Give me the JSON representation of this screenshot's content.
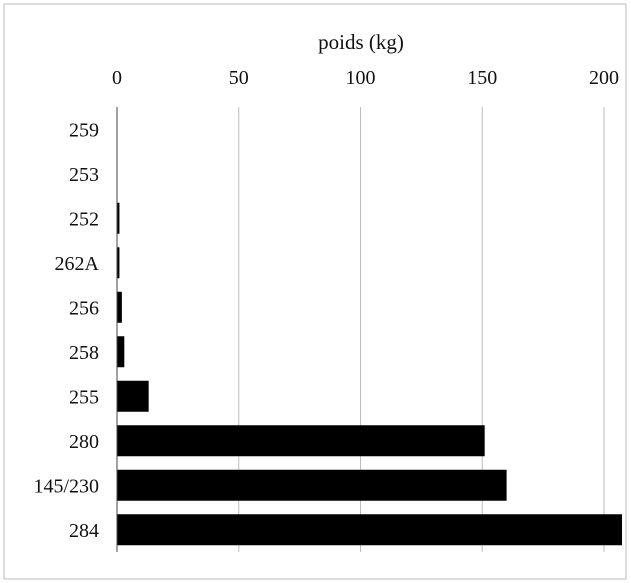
{
  "chart_data": {
    "type": "bar",
    "orientation": "horizontal",
    "xlabel": "poids (kg)",
    "x_axis_position": "top",
    "xlim": [
      0,
      205
    ],
    "xticks": [
      0,
      50,
      100,
      150,
      200
    ],
    "xtick_labels": [
      "0",
      "50",
      "100",
      "150",
      "200"
    ],
    "grid": "vertical",
    "categories": [
      "259",
      "253",
      "252",
      "262A",
      "256",
      "258",
      "255",
      "280",
      "145/230",
      "284"
    ],
    "values": [
      0,
      0,
      1,
      1,
      2,
      3,
      13,
      151,
      160,
      208
    ],
    "bar_color": "#000000",
    "grid_color": "#bdbdbd",
    "frame_color": "#bbbbbb"
  }
}
